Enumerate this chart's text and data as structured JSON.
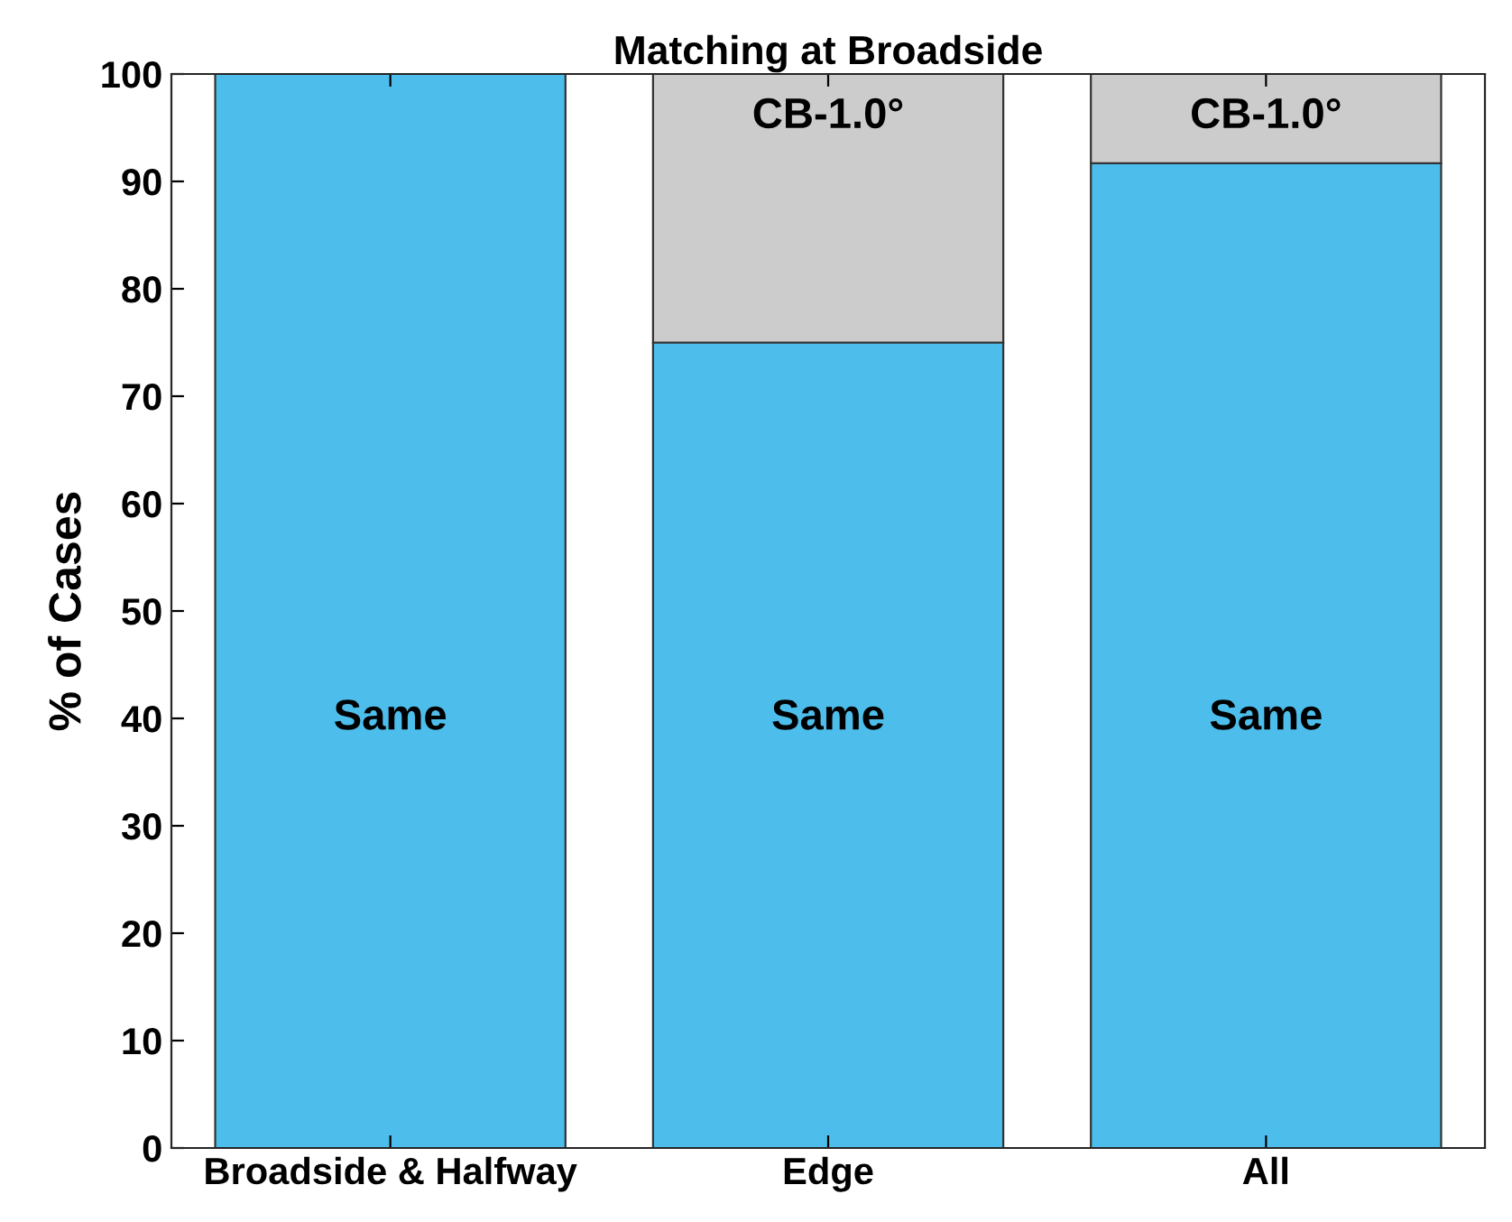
{
  "chart_data": {
    "type": "bar",
    "stacked": true,
    "title": "Matching at Broadside",
    "ylabel": "% of Cases",
    "categories": [
      "Broadside & Halfway",
      "Edge",
      "All"
    ],
    "series": [
      {
        "name": "Same",
        "color": "#4dbeeb",
        "values": [
          100,
          75,
          91.7
        ]
      },
      {
        "name": "CB-1.0°",
        "color": "#cccccc",
        "values": [
          null,
          25,
          8.3
        ]
      }
    ],
    "ylim": [
      0,
      100
    ],
    "yticks": [
      0,
      10,
      20,
      30,
      40,
      50,
      60,
      70,
      80,
      90,
      100
    ],
    "grid": false,
    "legend": false
  }
}
